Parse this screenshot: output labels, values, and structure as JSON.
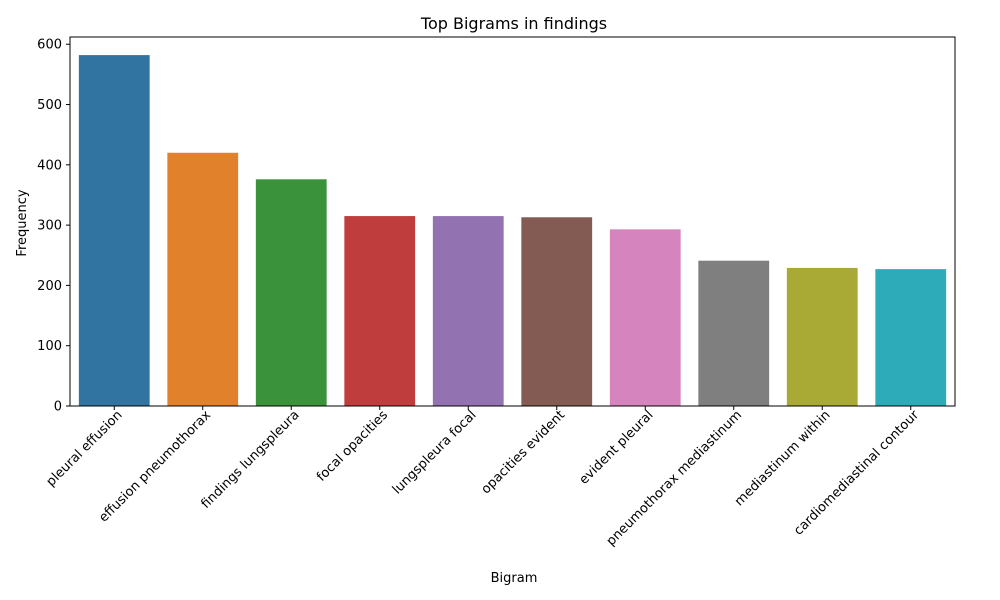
{
  "chart_data": {
    "type": "bar",
    "title": "Top Bigrams in findings",
    "xlabel": "Bigram",
    "ylabel": "Frequency",
    "categories": [
      "pleural effusion",
      "effusion pneumothorax",
      "findings lungspleura",
      "focal opacities",
      "lungspleura focal",
      "opacities evident",
      "evident pleural",
      "pneumothorax mediastinum",
      "mediastinum within",
      "cardiomediastinal contour"
    ],
    "values": [
      582,
      420,
      376,
      315,
      315,
      313,
      293,
      241,
      229,
      227
    ],
    "colors": [
      "#3274a1",
      "#e1812c",
      "#3a923a",
      "#c03d3e",
      "#9372b2",
      "#845b53",
      "#d684bd",
      "#7f7f7f",
      "#a9aa35",
      "#2eabb8"
    ],
    "yticks": [
      0,
      100,
      200,
      300,
      400,
      500,
      600
    ],
    "ylim": [
      0,
      612
    ],
    "grid": false,
    "legend": false
  }
}
